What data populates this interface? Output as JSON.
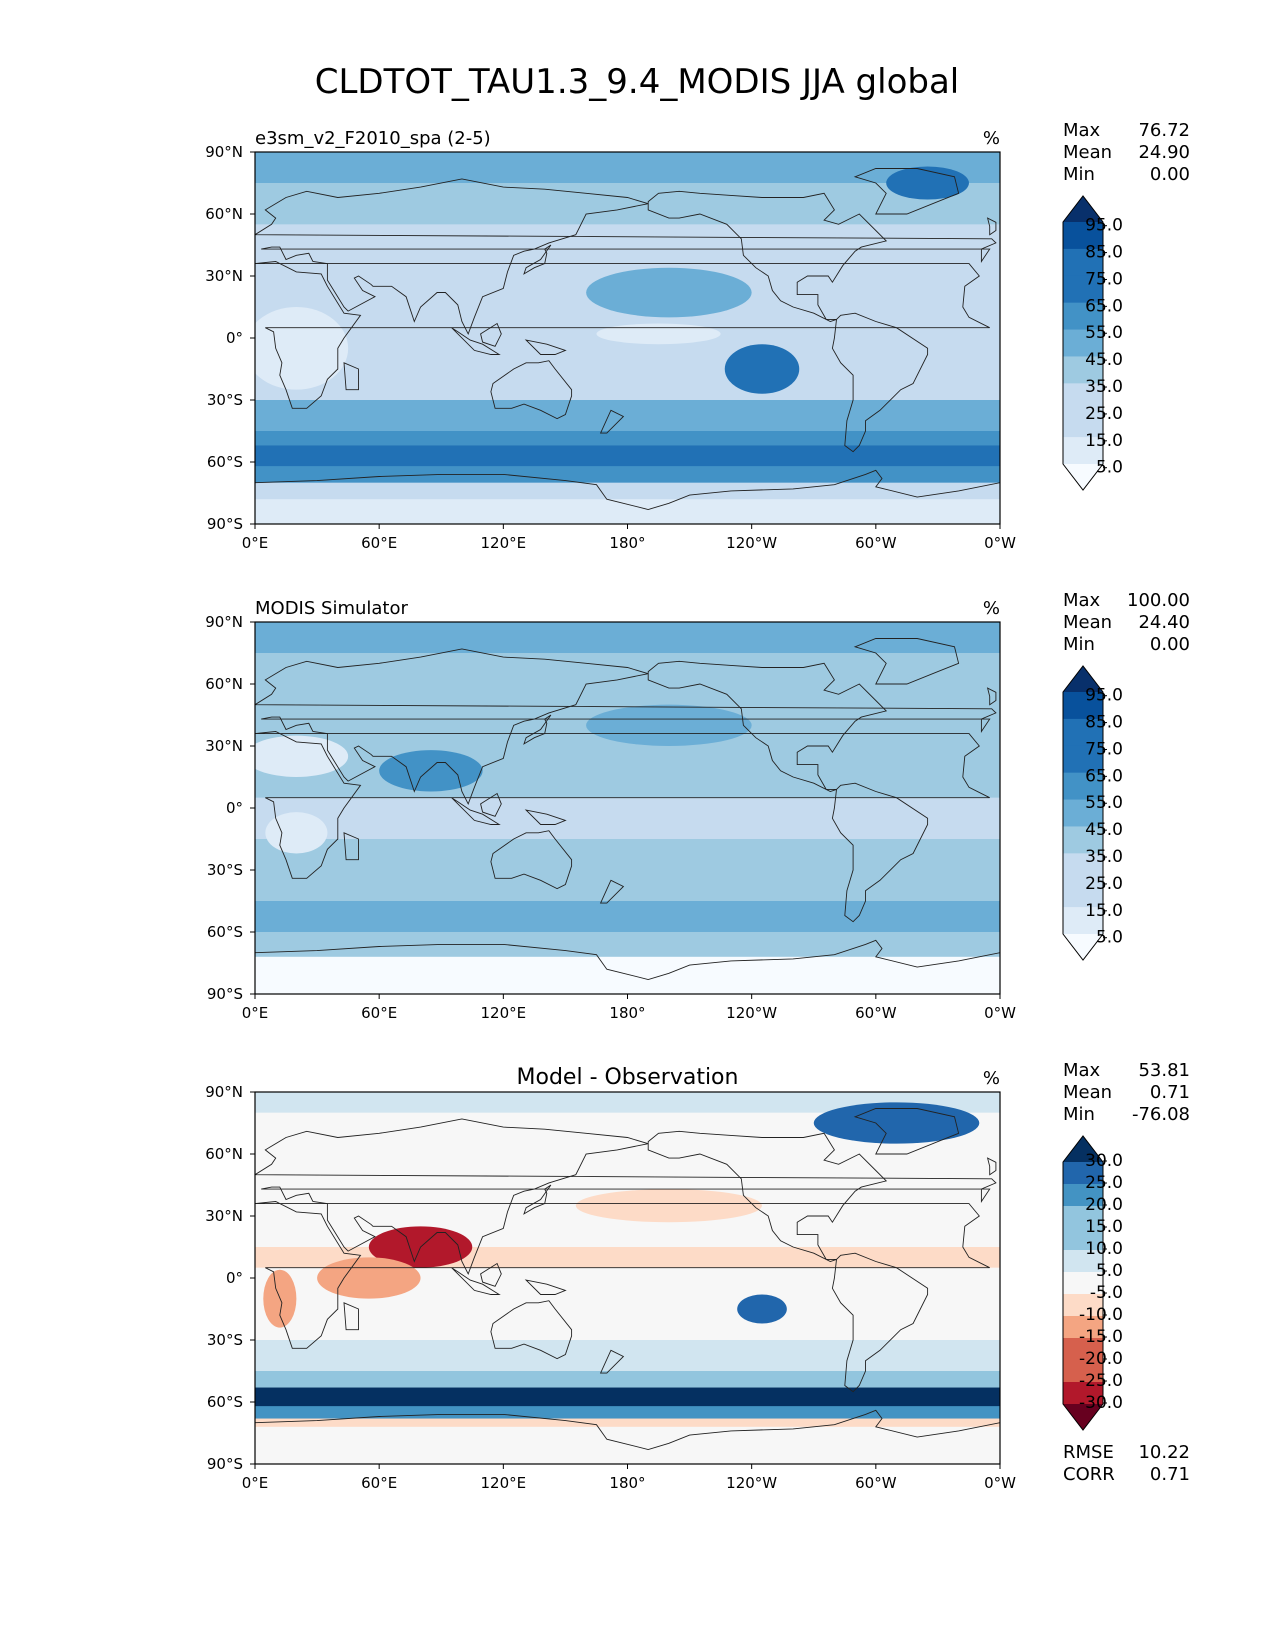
{
  "title": "CLDTOT_TAU1.3_9.4_MODIS JJA global",
  "units": "%",
  "axes": {
    "lat_ticks": [
      "90°N",
      "60°N",
      "30°N",
      "0°",
      "30°S",
      "60°S",
      "90°S"
    ],
    "lon_ticks": [
      "0°E",
      "60°E",
      "120°E",
      "180°",
      "120°W",
      "60°W",
      "0°W"
    ]
  },
  "colors": {
    "sequential": [
      "#f7fbff",
      "#deebf7",
      "#c6dbef",
      "#9ecae1",
      "#6baed6",
      "#4292c6",
      "#2171b5",
      "#08519c",
      "#08306b"
    ],
    "diverging": [
      "#67001f",
      "#b2182b",
      "#d6604d",
      "#f4a582",
      "#fddbc7",
      "#f7f7f7",
      "#d1e5f0",
      "#92c5de",
      "#4393c3",
      "#2166ac",
      "#053061"
    ]
  },
  "chart_data": [
    {
      "type": "heatmap",
      "title": "e3sm_v2_F2010_spa (2-5)",
      "units": "%",
      "xlim": [
        0,
        360
      ],
      "ylim": [
        -90,
        90
      ],
      "stats": {
        "max_label": "Max",
        "max": "76.72",
        "mean_label": "Mean",
        "mean": "24.90",
        "min_label": "Min",
        "min": "0.00"
      },
      "colorbar": {
        "levels": [
          "95.0",
          "85.0",
          "75.0",
          "65.0",
          "55.0",
          "45.0",
          "35.0",
          "25.0",
          "15.0",
          "5.0"
        ],
        "extend": "both",
        "cmap": "sequential"
      },
      "bands": [
        {
          "lat0": 90,
          "lat1": 75,
          "v": 40
        },
        {
          "lat0": 75,
          "lat1": 55,
          "v": 25
        },
        {
          "lat0": 55,
          "lat1": 30,
          "v": 22
        },
        {
          "lat0": 30,
          "lat1": 5,
          "v": 18
        },
        {
          "lat0": 5,
          "lat1": -15,
          "v": 20
        },
        {
          "lat0": -15,
          "lat1": -30,
          "v": 24
        },
        {
          "lat0": -30,
          "lat1": -45,
          "v": 38
        },
        {
          "lat0": -45,
          "lat1": -52,
          "v": 48
        },
        {
          "lat0": -52,
          "lat1": -62,
          "v": 60
        },
        {
          "lat0": -62,
          "lat1": -70,
          "v": 45
        },
        {
          "lat0": -70,
          "lat1": -78,
          "v": 18
        },
        {
          "lat0": -78,
          "lat1": -90,
          "v": 8
        }
      ],
      "blobs": [
        {
          "lon": 245,
          "lat": -15,
          "w": 18,
          "h": 12,
          "v": 55
        },
        {
          "lon": 195,
          "lat": 2,
          "w": 30,
          "h": 5,
          "v": 5
        },
        {
          "lon": 20,
          "lat": -5,
          "w": 25,
          "h": 20,
          "v": 6
        },
        {
          "lon": 200,
          "lat": 22,
          "w": 40,
          "h": 12,
          "v": 38
        },
        {
          "lon": 325,
          "lat": 75,
          "w": 20,
          "h": 8,
          "v": 55
        }
      ]
    },
    {
      "type": "heatmap",
      "title": "MODIS Simulator",
      "units": "%",
      "xlim": [
        0,
        360
      ],
      "ylim": [
        -90,
        90
      ],
      "stats": {
        "max_label": "Max",
        "max": "100.00",
        "mean_label": "Mean",
        "mean": "24.40",
        "min_label": "Min",
        "min": "0.00"
      },
      "colorbar": {
        "levels": [
          "95.0",
          "85.0",
          "75.0",
          "65.0",
          "55.0",
          "45.0",
          "35.0",
          "25.0",
          "15.0",
          "5.0"
        ],
        "extend": "both",
        "cmap": "sequential"
      },
      "bands": [
        {
          "lat0": 90,
          "lat1": 75,
          "v": 35
        },
        {
          "lat0": 75,
          "lat1": 55,
          "v": 30
        },
        {
          "lat0": 55,
          "lat1": 30,
          "v": 32
        },
        {
          "lat0": 30,
          "lat1": 5,
          "v": 28
        },
        {
          "lat0": 5,
          "lat1": -15,
          "v": 24
        },
        {
          "lat0": -15,
          "lat1": -30,
          "v": 26
        },
        {
          "lat0": -30,
          "lat1": -45,
          "v": 32
        },
        {
          "lat0": -45,
          "lat1": -60,
          "v": 36
        },
        {
          "lat0": -60,
          "lat1": -72,
          "v": 34
        },
        {
          "lat0": -72,
          "lat1": -90,
          "v": 0
        }
      ],
      "blobs": [
        {
          "lon": 85,
          "lat": 18,
          "w": 25,
          "h": 10,
          "v": 50
        },
        {
          "lon": 20,
          "lat": 25,
          "w": 25,
          "h": 10,
          "v": 5
        },
        {
          "lon": 20,
          "lat": -12,
          "w": 15,
          "h": 10,
          "v": 6
        },
        {
          "lon": 200,
          "lat": 40,
          "w": 40,
          "h": 10,
          "v": 42
        }
      ]
    },
    {
      "type": "heatmap",
      "title": "Model - Observation",
      "units": "%",
      "xlim": [
        0,
        360
      ],
      "ylim": [
        -90,
        90
      ],
      "stats": {
        "max_label": "Max",
        "max": "53.81",
        "mean_label": "Mean",
        "mean": "0.71",
        "min_label": "Min",
        "min": "-76.08"
      },
      "extra_stats": {
        "rmse_label": "RMSE",
        "rmse": "10.22",
        "corr_label": "CORR",
        "corr": "0.71"
      },
      "colorbar": {
        "levels": [
          "30.0",
          "25.0",
          "20.0",
          "15.0",
          "10.0",
          "5.0",
          "-5.0",
          "-10.0",
          "-15.0",
          "-20.0",
          "-25.0",
          "-30.0"
        ],
        "extend": "both",
        "cmap": "diverging"
      },
      "bands": [
        {
          "lat0": 90,
          "lat1": 80,
          "v": 8
        },
        {
          "lat0": 80,
          "lat1": 50,
          "v": 0
        },
        {
          "lat0": 50,
          "lat1": 35,
          "v": -4
        },
        {
          "lat0": 35,
          "lat1": 15,
          "v": 0
        },
        {
          "lat0": 15,
          "lat1": 5,
          "v": -6
        },
        {
          "lat0": 5,
          "lat1": -30,
          "v": 0
        },
        {
          "lat0": -30,
          "lat1": -45,
          "v": 6
        },
        {
          "lat0": -45,
          "lat1": -53,
          "v": 12
        },
        {
          "lat0": -53,
          "lat1": -62,
          "v": 30
        },
        {
          "lat0": -62,
          "lat1": -68,
          "v": 20
        },
        {
          "lat0": -68,
          "lat1": -72,
          "v": -10
        },
        {
          "lat0": -72,
          "lat1": -90,
          "v": 0
        }
      ],
      "blobs": [
        {
          "lon": 310,
          "lat": 75,
          "w": 40,
          "h": 10,
          "v": 25
        },
        {
          "lon": 80,
          "lat": 15,
          "w": 25,
          "h": 10,
          "v": -28
        },
        {
          "lon": 55,
          "lat": 0,
          "w": 25,
          "h": 10,
          "v": -15
        },
        {
          "lon": 12,
          "lat": -10,
          "w": 8,
          "h": 14,
          "v": -18
        },
        {
          "lon": 245,
          "lat": -15,
          "w": 12,
          "h": 7,
          "v": 25
        },
        {
          "lon": 200,
          "lat": 35,
          "w": 45,
          "h": 8,
          "v": -6
        }
      ]
    }
  ]
}
